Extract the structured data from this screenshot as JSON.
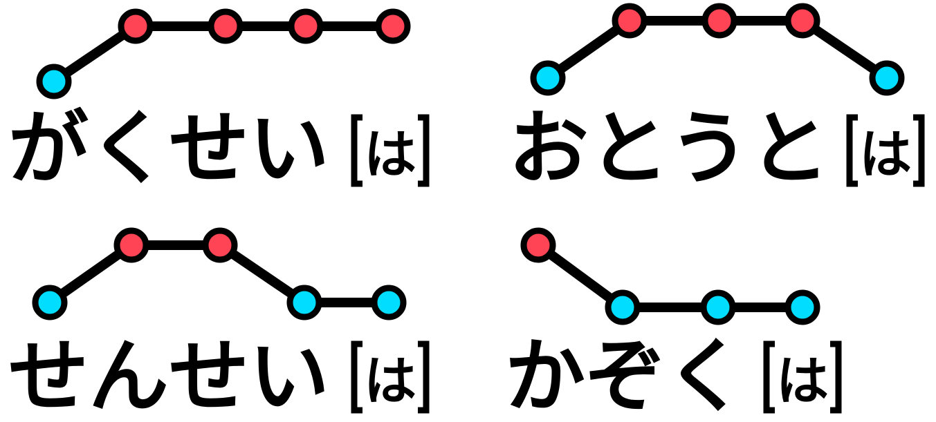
{
  "colors": {
    "high": "#ff4455",
    "low": "#00ddff",
    "line": "#000000",
    "background": "#ffffff"
  },
  "pitch_labels": [
    "high",
    "low"
  ],
  "words": [
    {
      "id": "gakusei",
      "text": "がくせい",
      "particle": "は",
      "pitch": [
        "low",
        "high",
        "high",
        "high",
        "high"
      ]
    },
    {
      "id": "otouto",
      "text": "おとうと",
      "particle": "は",
      "pitch": [
        "low",
        "high",
        "high",
        "high",
        "low"
      ]
    },
    {
      "id": "sensei",
      "text": "せんせい",
      "particle": "は",
      "pitch": [
        "low",
        "high",
        "high",
        "low",
        "low"
      ]
    },
    {
      "id": "kazoku",
      "text": "かぞく",
      "particle": "は",
      "pitch": [
        "high",
        "low",
        "low",
        "low"
      ]
    }
  ]
}
